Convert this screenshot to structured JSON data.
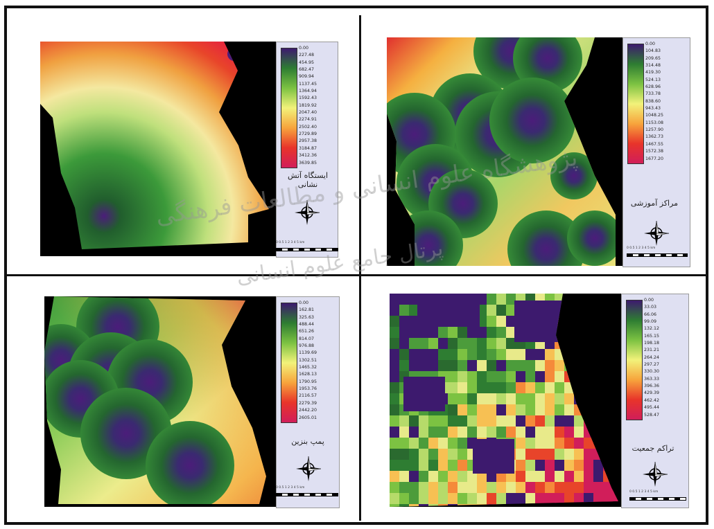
{
  "panels": [
    {
      "id": "fuel-station",
      "title_lines": [
        "ایستگاه آتش",
        "نشانی"
      ],
      "legend_labels": [
        "0.00",
        "227.48",
        "454.95",
        "682.47",
        "909.94",
        "1137.45",
        "1364.94",
        "1592.43",
        "1819.92",
        "2047.40",
        "2274.91",
        "2502.40",
        "2729.89",
        "2957.38",
        "3184.87",
        "3412.36",
        "3639.85"
      ],
      "ramp": [
        "#3d1a6e",
        "#2e7d32",
        "#7cc242",
        "#f2f27a",
        "#f7a43c",
        "#e8342a",
        "#d11e5a"
      ]
    },
    {
      "id": "education-centers",
      "title_lines": [
        "مراکز آموزشی"
      ],
      "legend_labels": [
        "0.00",
        "104.83",
        "209.65",
        "314.48",
        "419.30",
        "524.13",
        "628.96",
        "733.78",
        "838.60",
        "943.43",
        "1048.25",
        "1153.08",
        "1257.90",
        "1362.73",
        "1467.55",
        "1572.38",
        "1677.20"
      ],
      "ramp": [
        "#3d1a6e",
        "#2e7d32",
        "#7cc242",
        "#f2f27a",
        "#f7a43c",
        "#e8342a",
        "#d11e5a"
      ]
    },
    {
      "id": "gas-station",
      "title_lines": [
        "پمپ بنزین"
      ],
      "legend_labels": [
        "0.00",
        "162.81",
        "325.63",
        "488.44",
        "651.26",
        "814.07",
        "976.88",
        "1139.69",
        "1302.51",
        "1465.32",
        "1628.13",
        "1790.95",
        "1953.76",
        "2116.57",
        "2279.39",
        "2442.20",
        "2605.01"
      ],
      "ramp": [
        "#3d1a6e",
        "#2e7d32",
        "#7cc242",
        "#f2f27a",
        "#f7a43c",
        "#e8342a",
        "#d11e5a"
      ]
    },
    {
      "id": "population-density",
      "title_lines": [
        "تراکم جمعیت"
      ],
      "legend_labels": [
        "0.00",
        "33.03",
        "66.06",
        "99.09",
        "132.12",
        "165.15",
        "198.18",
        "231.21",
        "264.24",
        "297.27",
        "330.30",
        "363.33",
        "396.36",
        "429.39",
        "462.42",
        "495.44",
        "528.47"
      ],
      "ramp": [
        "#3d1a6e",
        "#2e7d32",
        "#7cc242",
        "#f2f27a",
        "#f7a43c",
        "#e8342a",
        "#d11e5a"
      ]
    }
  ],
  "scale_ticks": "0 0.5 1  2  3  4  5 km",
  "watermark": {
    "line1": "پژوهشگاه علوم انسانی و مطالعات فرهنگی",
    "line2": "پرتال جامع علوم انسانی"
  },
  "colors": {
    "frame": "#111111",
    "background": "#000000",
    "legend_bg": "#dfe0f2"
  },
  "icons": [
    "north-arrow-icon"
  ]
}
